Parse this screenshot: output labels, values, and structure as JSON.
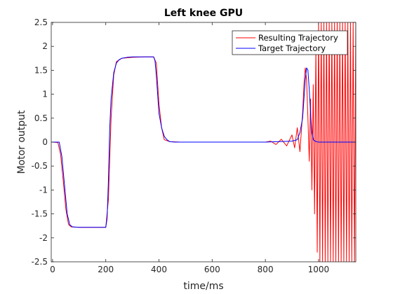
{
  "chart_data": {
    "type": "line",
    "title": "Left knee GPU",
    "xlabel": "time/ms",
    "ylabel": "Motor output",
    "xlim": [
      -5,
      1140
    ],
    "ylim": [
      -2.5,
      2.5
    ],
    "xticks": [
      0,
      200,
      400,
      600,
      800,
      1000
    ],
    "yticks": [
      -2.5,
      -2,
      -1.5,
      -1,
      -0.5,
      0,
      0.5,
      1,
      1.5,
      2,
      2.5
    ],
    "xtick_labels": [
      "0",
      "200",
      "400",
      "600",
      "800",
      "1000"
    ],
    "ytick_labels": [
      "-2.5",
      "-2",
      "-1.5",
      "-1",
      "-0.5",
      "0",
      "0.5",
      "1",
      "1.5",
      "2",
      "2.5"
    ],
    "grid": false,
    "legend_position": "top-right",
    "series": [
      {
        "name": "Resulting Trajectory",
        "color": "#ff0000",
        "style": "line",
        "x": [
          0,
          20,
          30,
          40,
          50,
          60,
          70,
          100,
          150,
          190,
          200,
          210,
          220,
          230,
          240,
          260,
          300,
          350,
          380,
          390,
          400,
          410,
          420,
          440,
          480,
          600,
          800,
          820,
          840,
          860,
          880,
          900,
          910,
          920,
          930,
          940,
          945,
          950,
          955,
          960,
          965,
          970,
          975,
          980,
          985,
          990,
          995,
          1000,
          1005,
          1010,
          1015,
          1020,
          1025,
          1030,
          1035,
          1040,
          1045,
          1050,
          1055,
          1060,
          1065,
          1070,
          1075,
          1080,
          1085,
          1090,
          1095,
          1100,
          1105,
          1110,
          1115,
          1120,
          1125,
          1130,
          1135,
          1140
        ],
        "y": [
          0,
          -0.01,
          -0.25,
          -0.8,
          -1.4,
          -1.72,
          -1.77,
          -1.78,
          -1.78,
          -1.78,
          -1.78,
          -1.2,
          0.5,
          1.4,
          1.68,
          1.75,
          1.77,
          1.78,
          1.78,
          1.65,
          0.8,
          0.3,
          0.05,
          0.01,
          0.0,
          0.0,
          0.0,
          0.02,
          -0.05,
          0.06,
          -0.08,
          0.15,
          -0.12,
          0.3,
          -0.2,
          0.6,
          1.2,
          1.55,
          1.3,
          0.5,
          -0.4,
          0.9,
          -1.0,
          1.2,
          -1.5,
          2.0,
          -2.3,
          2.5,
          -2.5,
          2.5,
          -2.5,
          2.5,
          -2.5,
          2.5,
          -2.5,
          2.5,
          -2.5,
          2.5,
          -2.5,
          2.5,
          -2.5,
          2.5,
          -2.5,
          2.5,
          -2.5,
          2.5,
          -2.5,
          2.5,
          -2.5,
          2.5,
          -2.5,
          2.5,
          -2.5,
          2.5,
          -2.5,
          2.5
        ]
      },
      {
        "name": "Target Trajectory",
        "color": "#0000ff",
        "style": "line",
        "x": [
          -5,
          25,
          35,
          45,
          55,
          65,
          75,
          100,
          150,
          200,
          205,
          210,
          215,
          220,
          230,
          240,
          250,
          260,
          280,
          300,
          350,
          380,
          385,
          390,
          395,
          400,
          410,
          420,
          430,
          440,
          460,
          500,
          600,
          800,
          900,
          920,
          930,
          940,
          945,
          950,
          955,
          960,
          965,
          970,
          975,
          980,
          990,
          1000,
          1140
        ],
        "y": [
          0,
          0,
          -0.3,
          -0.9,
          -1.5,
          -1.73,
          -1.77,
          -1.78,
          -1.78,
          -1.78,
          -1.6,
          -0.8,
          0.3,
          0.9,
          1.45,
          1.65,
          1.72,
          1.75,
          1.77,
          1.78,
          1.78,
          1.78,
          1.7,
          1.4,
          1.0,
          0.6,
          0.3,
          0.12,
          0.05,
          0.01,
          0.0,
          0.0,
          0.0,
          0.0,
          0.02,
          0.05,
          0.2,
          0.5,
          0.9,
          1.3,
          1.55,
          1.5,
          1.1,
          0.6,
          0.2,
          0.05,
          0.01,
          0.0,
          0.0
        ]
      }
    ]
  }
}
